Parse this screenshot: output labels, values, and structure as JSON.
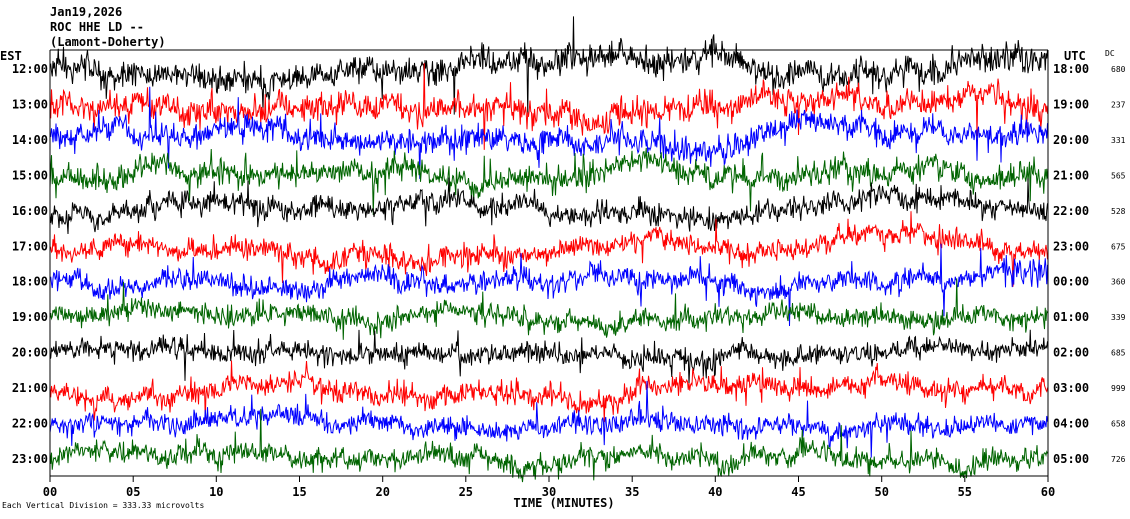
{
  "header": {
    "date": "Jan19,2026",
    "station": "ROC HHE LD --",
    "network": "(Lamont-Doherty)"
  },
  "chart_data": {
    "type": "helicorder",
    "left_axis_title": "EST",
    "right_axis_title": "UTC",
    "dc_header": "DC",
    "xlabel": "TIME (MINUTES)",
    "xlim": [
      0,
      60
    ],
    "x_ticks": [
      "00",
      "05",
      "10",
      "15",
      "20",
      "25",
      "30",
      "35",
      "40",
      "45",
      "50",
      "55",
      "60"
    ],
    "scale_note": "Each Vertical Division =  333.33 microvolts",
    "trace_colors": [
      "#000000",
      "#ff0000",
      "#0000ff",
      "#006400"
    ],
    "rows": [
      {
        "est": "12:00",
        "utc": "18:00",
        "dc": "680",
        "amplitude": 1.0
      },
      {
        "est": "13:00",
        "utc": "19:00",
        "dc": "237",
        "amplitude": 0.95
      },
      {
        "est": "14:00",
        "utc": "20:00",
        "dc": "331",
        "amplitude": 0.9
      },
      {
        "est": "15:00",
        "utc": "21:00",
        "dc": "565",
        "amplitude": 0.85
      },
      {
        "est": "16:00",
        "utc": "22:00",
        "dc": "528",
        "amplitude": 0.8
      },
      {
        "est": "17:00",
        "utc": "23:00",
        "dc": "675",
        "amplitude": 0.75
      },
      {
        "est": "18:00",
        "utc": "00:00",
        "dc": "360",
        "amplitude": 0.75
      },
      {
        "est": "19:00",
        "utc": "01:00",
        "dc": "339",
        "amplitude": 0.7
      },
      {
        "est": "20:00",
        "utc": "02:00",
        "dc": "685",
        "amplitude": 0.7
      },
      {
        "est": "21:00",
        "utc": "03:00",
        "dc": "999",
        "amplitude": 0.75
      },
      {
        "est": "22:00",
        "utc": "04:00",
        "dc": "658",
        "amplitude": 0.7
      },
      {
        "est": "23:00",
        "utc": "05:00",
        "dc": "726",
        "amplitude": 0.75
      }
    ]
  }
}
